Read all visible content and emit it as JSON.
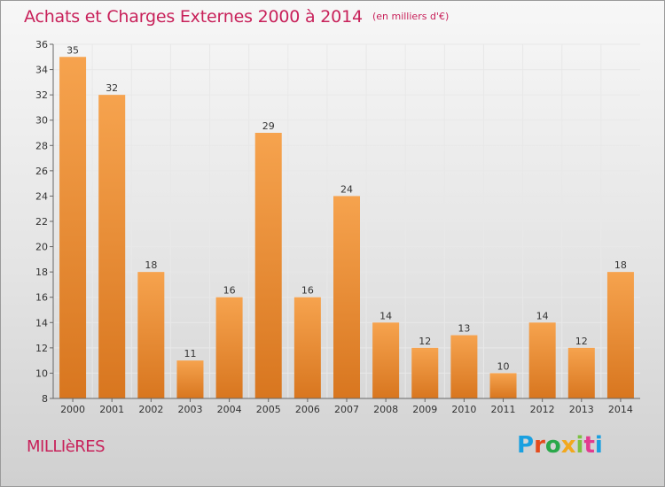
{
  "title": "Achats et Charges Externes 2000 à 2014",
  "unit": "(en milliers d'€)",
  "town": "MILLIèRES",
  "logo": {
    "letters": [
      "P",
      "r",
      "o",
      "x",
      "i",
      "t",
      "i"
    ]
  },
  "colors": {
    "title": "#c8215a",
    "bar_light": "#f6a34e",
    "bar_dark": "#d8761f",
    "grid": "#e8e8e8"
  },
  "chart_data": {
    "type": "bar",
    "categories": [
      "2000",
      "2001",
      "2002",
      "2003",
      "2004",
      "2005",
      "2006",
      "2007",
      "2008",
      "2009",
      "2010",
      "2011",
      "2012",
      "2013",
      "2014"
    ],
    "values": [
      35,
      32,
      18,
      11,
      16,
      29,
      16,
      24,
      14,
      12,
      13,
      10,
      14,
      12,
      18
    ],
    "ylim": [
      8,
      36
    ],
    "yticks": [
      8,
      10,
      12,
      14,
      16,
      18,
      20,
      22,
      24,
      26,
      28,
      30,
      32,
      34,
      36
    ],
    "grid": true,
    "data_labels": true
  }
}
